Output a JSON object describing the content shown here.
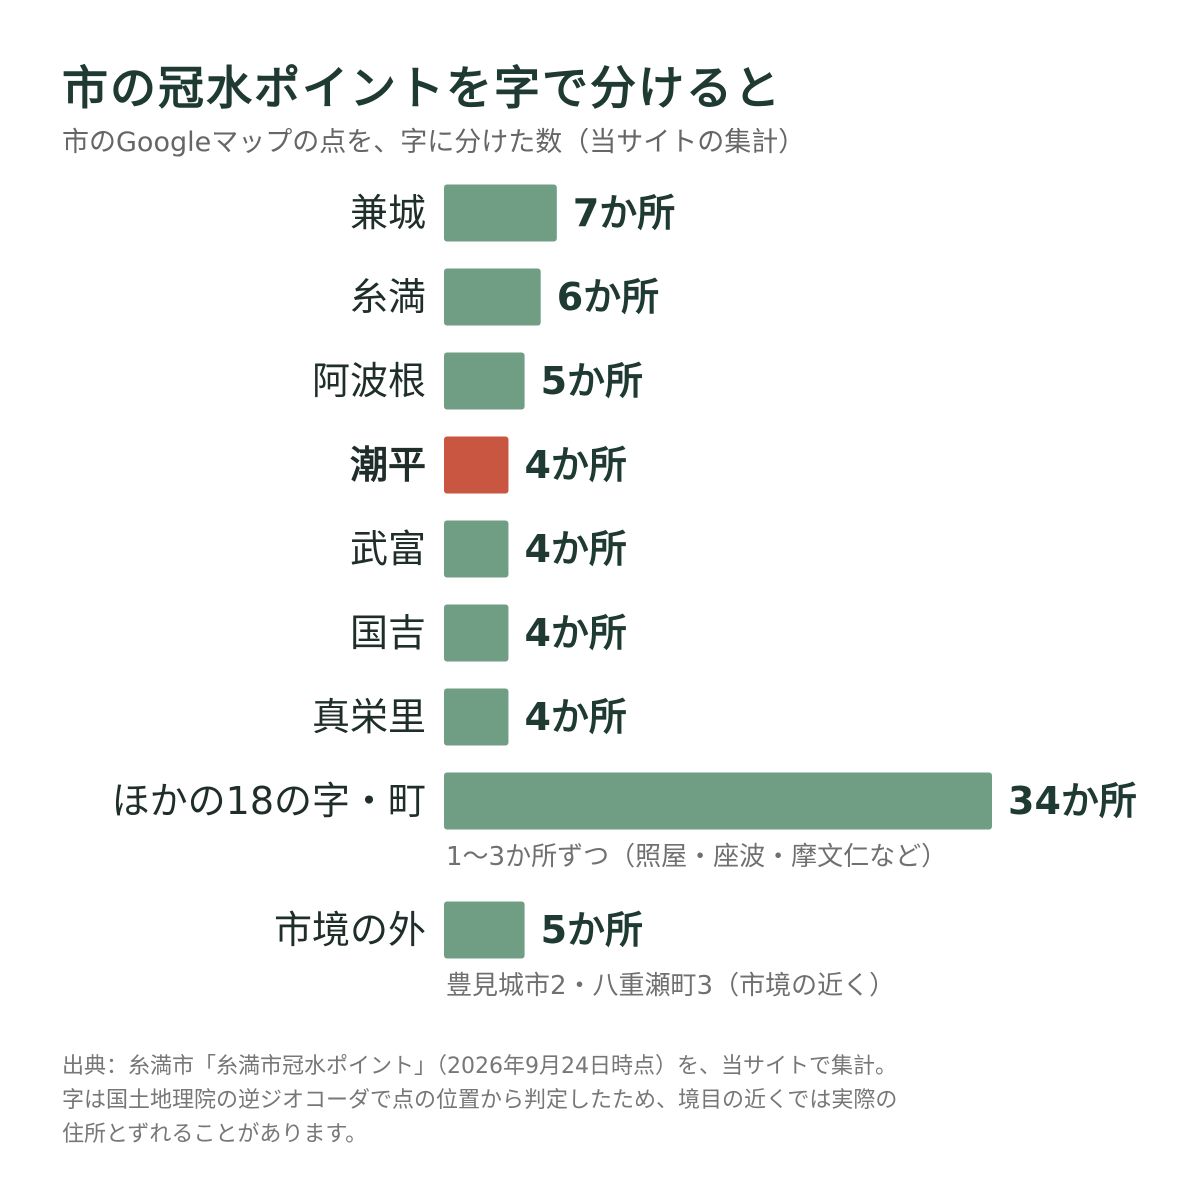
{
  "header": {
    "title": "市の冠水ポイントを字で分けると",
    "subtitle": "市のGoogleマップの点を、字に分けた数（当サイトの集計）"
  },
  "colors": {
    "bar": "#6f9e84",
    "highlight": "#c85640",
    "label_text": "#1f2e2a",
    "value_text": "#1f3a32",
    "note_text": "#707070"
  },
  "chart_data": {
    "type": "bar",
    "orientation": "horizontal",
    "value_suffix": "か所",
    "categories": [
      "兼城",
      "糸満",
      "阿波根",
      "潮平",
      "武富",
      "国吉",
      "真栄里",
      "ほかの18の字・町",
      "市境の外"
    ],
    "values": [
      7,
      6,
      5,
      4,
      4,
      4,
      4,
      34,
      5
    ],
    "highlighted": [
      "潮平"
    ],
    "notes": {
      "ほかの18の字・町": "1〜3か所ずつ（照屋・座波・摩文仁など）",
      "市境の外": "豊見城市2・八重瀬町3（市境の近く）"
    },
    "xlim": [
      0,
      34
    ],
    "grid": false,
    "legend": "none"
  },
  "footer": {
    "source_lines": [
      "出典：糸満市「糸満市冠水ポイント」（2026年9月24日時点）を、当サイトで集計。",
      "字は国土地理院の逆ジオコーダで点の位置から判定したため、境目の近くでは実際の",
      "住所とずれることがあります。"
    ]
  }
}
